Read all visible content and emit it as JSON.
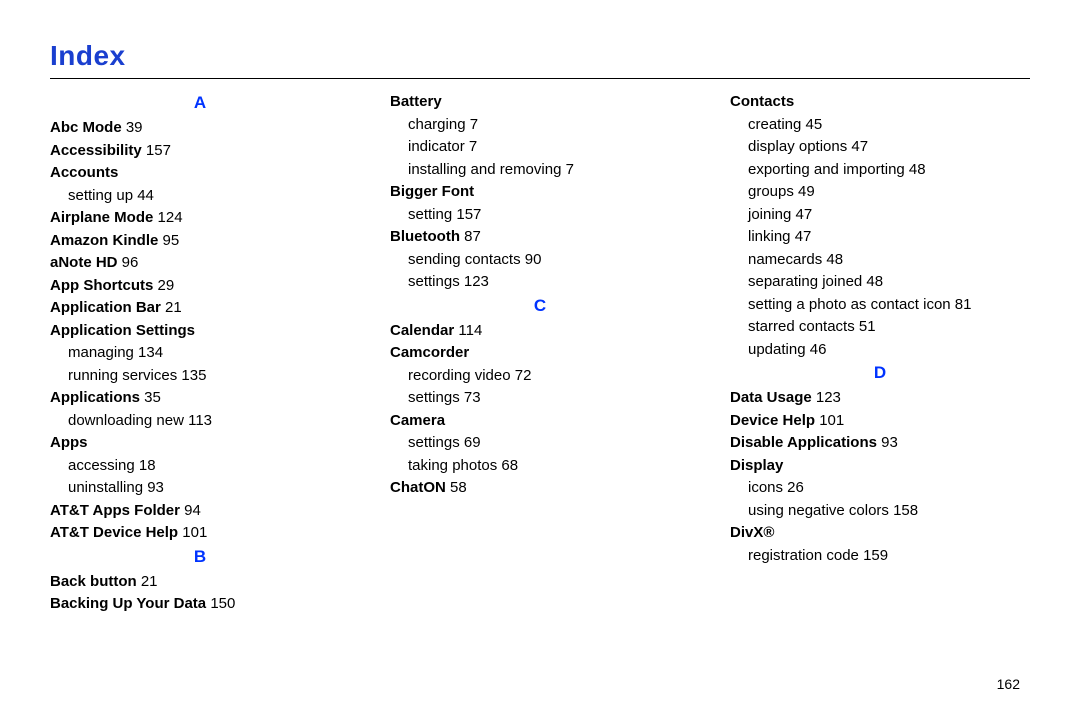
{
  "title": "Index",
  "page_number": "162",
  "sections": [
    {
      "letter": "A",
      "entries": [
        {
          "term": "Abc Mode",
          "page": "39"
        },
        {
          "term": "Accessibility",
          "page": "157"
        },
        {
          "term": "Accounts",
          "subs": [
            {
              "text": "setting up",
              "page": "44"
            }
          ]
        },
        {
          "term": "Airplane Mode",
          "page": "124"
        },
        {
          "term": "Amazon Kindle",
          "page": "95"
        },
        {
          "term": "aNote HD",
          "page": "96"
        },
        {
          "term": "App Shortcuts",
          "page": "29"
        },
        {
          "term": "Application Bar",
          "page": "21"
        },
        {
          "term": "Application Settings",
          "subs": [
            {
              "text": "managing",
              "page": "134"
            },
            {
              "text": "running services",
              "page": "135"
            }
          ]
        },
        {
          "term": "Applications",
          "page": "35",
          "subs": [
            {
              "text": "downloading new",
              "page": "113"
            }
          ]
        },
        {
          "term": "Apps",
          "subs": [
            {
              "text": "accessing",
              "page": "18"
            },
            {
              "text": "uninstalling",
              "page": "93"
            }
          ]
        },
        {
          "term": "AT&T Apps Folder",
          "page": "94"
        },
        {
          "term": "AT&T Device Help",
          "page": "101"
        }
      ]
    },
    {
      "letter": "B",
      "entries": [
        {
          "term": "Back button",
          "page": "21"
        },
        {
          "term": "Backing Up Your Data",
          "page": "150"
        },
        {
          "term": "Battery",
          "subs": [
            {
              "text": "charging",
              "page": "7"
            },
            {
              "text": "indicator",
              "page": "7"
            },
            {
              "text": "installing and removing",
              "page": "7"
            }
          ]
        },
        {
          "term": "Bigger Font",
          "subs": [
            {
              "text": "setting",
              "page": "157"
            }
          ]
        },
        {
          "term": "Bluetooth",
          "page": "87",
          "subs": [
            {
              "text": "sending contacts",
              "page": "90"
            },
            {
              "text": "settings",
              "page": "123"
            }
          ]
        }
      ]
    },
    {
      "letter": "C",
      "entries": [
        {
          "term": "Calendar",
          "page": "114"
        },
        {
          "term": "Camcorder",
          "subs": [
            {
              "text": "recording video",
              "page": "72"
            },
            {
              "text": "settings",
              "page": "73"
            }
          ]
        },
        {
          "term": "Camera",
          "subs": [
            {
              "text": "settings",
              "page": "69"
            },
            {
              "text": "taking photos",
              "page": "68"
            }
          ]
        },
        {
          "term": "ChatON",
          "page": "58"
        },
        {
          "term": "Contacts",
          "subs": [
            {
              "text": "creating",
              "page": "45"
            },
            {
              "text": "display options",
              "page": "47"
            },
            {
              "text": "exporting and importing",
              "page": "48"
            },
            {
              "text": "groups",
              "page": "49"
            },
            {
              "text": "joining",
              "page": "47"
            },
            {
              "text": "linking",
              "page": "47"
            },
            {
              "text": "namecards",
              "page": "48"
            },
            {
              "text": "separating joined",
              "page": "48"
            },
            {
              "text": "setting a photo as contact icon",
              "page": "81"
            },
            {
              "text": "starred contacts",
              "page": "51"
            },
            {
              "text": "updating",
              "page": "46"
            }
          ]
        }
      ]
    },
    {
      "letter": "D",
      "entries": [
        {
          "term": "Data Usage",
          "page": "123"
        },
        {
          "term": "Device Help",
          "page": "101"
        },
        {
          "term": "Disable Applications",
          "page": "93"
        },
        {
          "term": "Display",
          "subs": [
            {
              "text": "icons",
              "page": "26"
            },
            {
              "text": "using negative colors",
              "page": "158"
            }
          ]
        },
        {
          "term": "DivX®",
          "subs": [
            {
              "text": "registration code",
              "page": "159"
            }
          ]
        }
      ]
    }
  ]
}
